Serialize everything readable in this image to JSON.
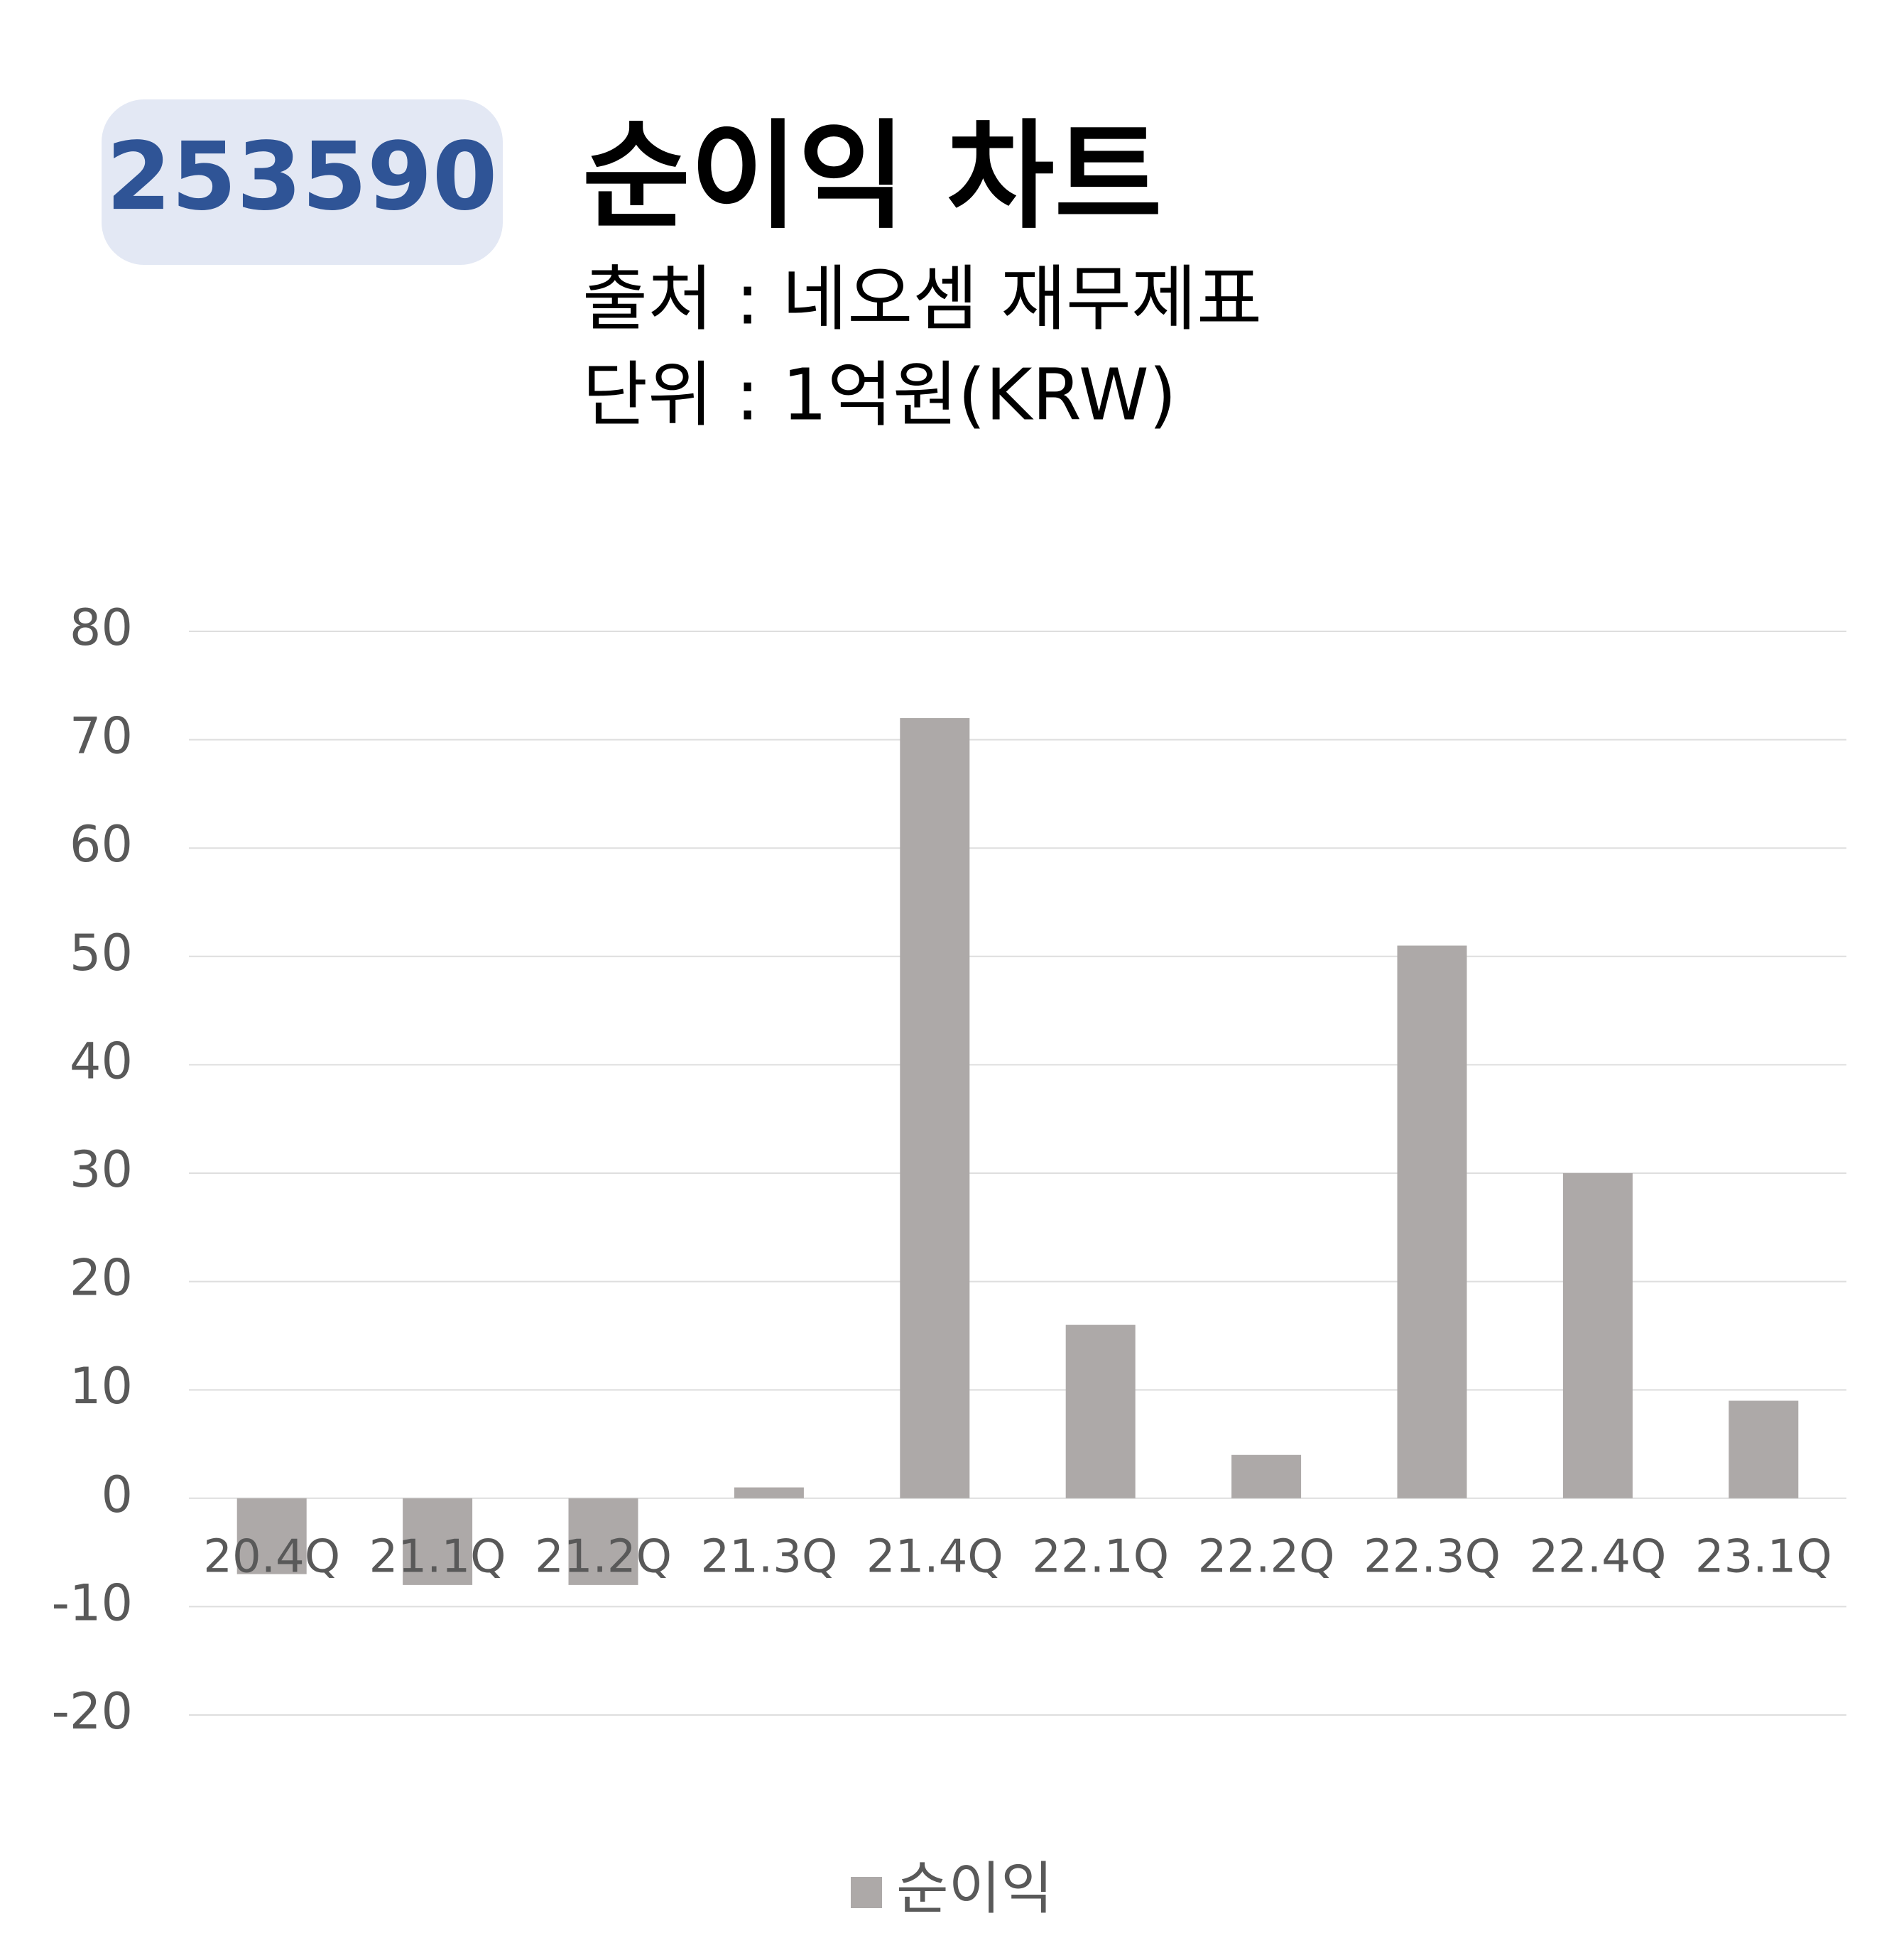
{
  "chart_data": {
    "type": "bar",
    "badge": "253590",
    "title": "순이익 차트",
    "subtitle": [
      "출처 : 네오셈 재무제표",
      "단위 : 1억원(KRW)"
    ],
    "categories": [
      "20.4Q",
      "21.1Q",
      "21.2Q",
      "21.3Q",
      "21.4Q",
      "22.1Q",
      "22.2Q",
      "22.3Q",
      "22.4Q",
      "23.1Q"
    ],
    "series": [
      {
        "name": "순이익",
        "color": "#ada9a8",
        "values": [
          -7,
          -8,
          -8,
          1,
          72,
          16,
          4,
          51,
          30,
          9
        ]
      }
    ],
    "ylim": [
      -20,
      80
    ],
    "yticks": [
      -20,
      -10,
      0,
      10,
      20,
      30,
      40,
      50,
      60,
      70,
      80
    ],
    "grid": true,
    "legend": "bottom"
  }
}
